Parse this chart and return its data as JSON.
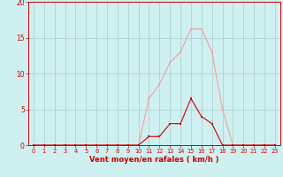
{
  "bg_color": "#cff0f0",
  "grid_color": "#aacccc",
  "xlabel": "Vent moyen/en rafales ( km/h )",
  "xlabel_color": "#cc0000",
  "tick_color": "#cc0000",
  "xlim": [
    -0.5,
    23.5
  ],
  "ylim": [
    0,
    20
  ],
  "xticks": [
    0,
    1,
    2,
    3,
    4,
    5,
    6,
    7,
    8,
    9,
    10,
    11,
    12,
    13,
    14,
    15,
    16,
    17,
    18,
    19,
    20,
    21,
    22,
    23
  ],
  "yticks": [
    0,
    5,
    10,
    15,
    20
  ],
  "series_light": {
    "x": [
      0,
      1,
      2,
      3,
      4,
      5,
      6,
      7,
      8,
      9,
      10,
      11,
      12,
      13,
      14,
      15,
      16,
      17,
      18,
      19,
      20,
      21,
      22,
      23
    ],
    "y": [
      0,
      0,
      0,
      0,
      0,
      0,
      0,
      0,
      0,
      0,
      0,
      6.5,
      8.5,
      11.5,
      13,
      16.2,
      16.2,
      13,
      5,
      0,
      0,
      0,
      0,
      0
    ],
    "color": "#f0a0a0",
    "linewidth": 0.8,
    "markersize": 2.0
  },
  "series_dark": {
    "x": [
      0,
      1,
      2,
      3,
      4,
      5,
      6,
      7,
      8,
      9,
      10,
      11,
      12,
      13,
      14,
      15,
      16,
      17,
      18,
      19,
      20,
      21,
      22,
      23
    ],
    "y": [
      0,
      0,
      0,
      0,
      0,
      0,
      0,
      0,
      0,
      0,
      0,
      1.2,
      1.2,
      3,
      3,
      6.5,
      4,
      3,
      0,
      0,
      0,
      0,
      0,
      0
    ],
    "color": "#cc0000",
    "linewidth": 0.8,
    "markersize": 2.0
  }
}
